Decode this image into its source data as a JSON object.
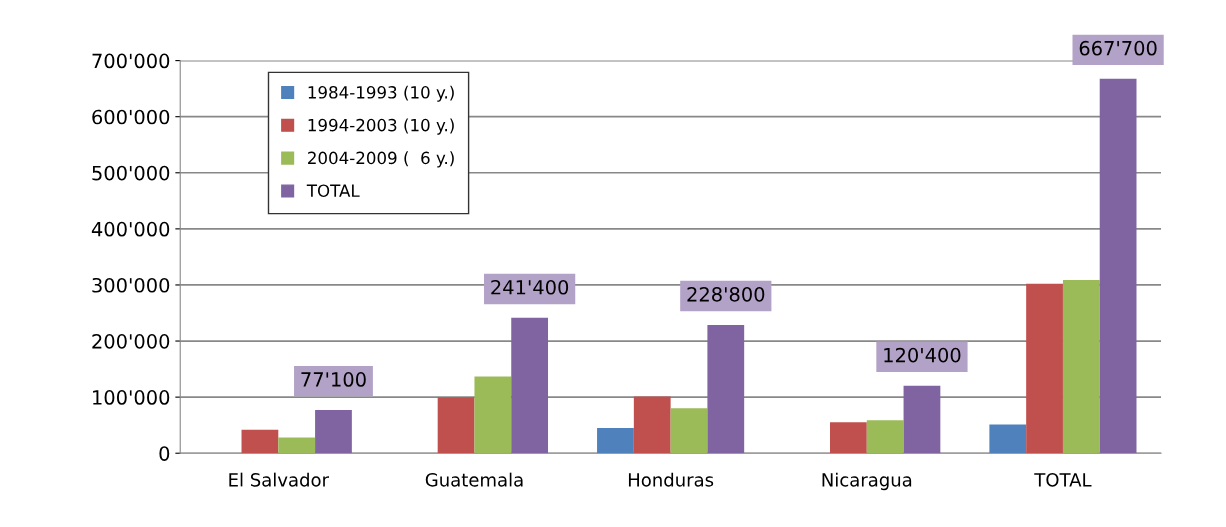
{
  "chart_data": {
    "type": "bar",
    "categories": [
      "El Salvador",
      "Guatemala",
      "Honduras",
      "Nicaragua",
      "TOTAL"
    ],
    "series": [
      {
        "name": "1984-1993 (10 y.)",
        "color": "#4f81bd",
        "values": [
          null,
          null,
          45000,
          null,
          51000
        ]
      },
      {
        "name": "1994-2003 (10 y.)",
        "color": "#c0504d",
        "values": [
          42000,
          100000,
          101000,
          55000,
          302000
        ]
      },
      {
        "name": "2004-2009 (  6 y.)",
        "color": "#9bbb59",
        "values": [
          28000,
          137000,
          80000,
          59000,
          309000
        ]
      },
      {
        "name": "TOTAL",
        "color": "#8064a2",
        "values": [
          77100,
          241400,
          228800,
          120400,
          667700
        ],
        "value_labels": [
          "77'100",
          "241'400",
          "228'800",
          "120'400",
          "667'700"
        ]
      }
    ],
    "ylim": [
      0,
      700000
    ],
    "yticks": [
      {
        "value": 0,
        "label": "0"
      },
      {
        "value": 100000,
        "label": "100'000"
      },
      {
        "value": 200000,
        "label": "200'000"
      },
      {
        "value": 300000,
        "label": "300'000"
      },
      {
        "value": 400000,
        "label": "400'000"
      },
      {
        "value": 500000,
        "label": "500'000"
      },
      {
        "value": 600000,
        "label": "600'000"
      },
      {
        "value": 700000,
        "label": "700'000"
      }
    ],
    "grid": "y",
    "legend": "top left"
  }
}
